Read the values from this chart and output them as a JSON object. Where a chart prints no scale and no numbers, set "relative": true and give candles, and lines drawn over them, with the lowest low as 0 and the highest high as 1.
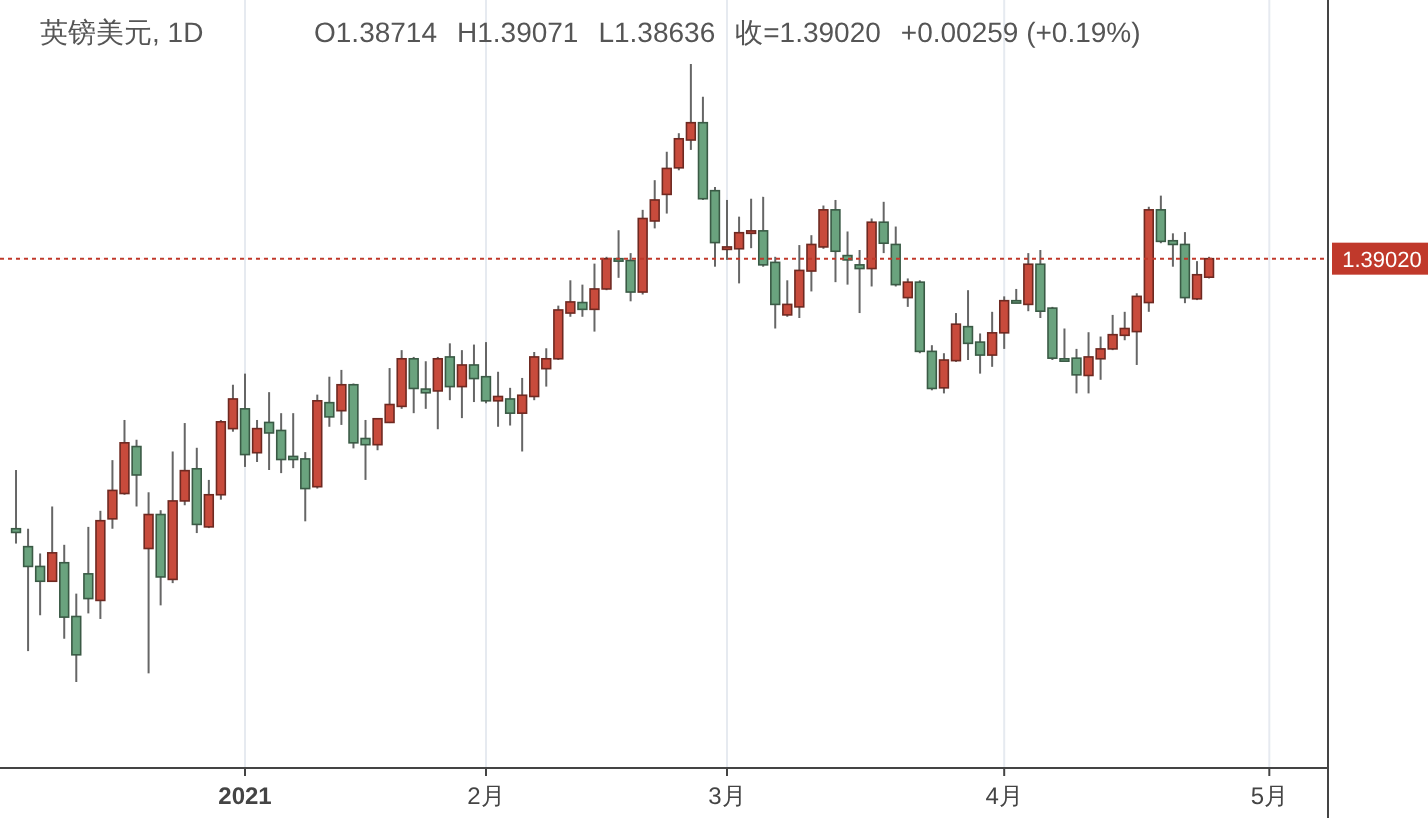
{
  "chart_data": {
    "type": "candlestick",
    "title": "英镑美元, 1D",
    "annotations": [
      "O1.38714",
      "H1.39071",
      "L1.38636",
      "收=1.39020",
      "+0.00259 (+0.19%)",
      "1.39020"
    ],
    "relative": true,
    "categories": [
      null,
      null,
      null,
      null,
      null,
      null,
      null,
      null,
      null,
      null,
      null,
      null,
      null,
      null,
      null,
      null,
      null,
      null,
      null,
      "2021",
      null,
      null,
      null,
      null,
      null,
      null,
      null,
      null,
      null,
      null,
      null,
      null,
      null,
      null,
      null,
      null,
      null,
      null,
      null,
      "2月",
      null,
      null,
      null,
      null,
      null,
      null,
      null,
      null,
      null,
      null,
      null,
      null,
      null,
      null,
      null,
      null,
      null,
      null,
      null,
      "3月",
      null,
      null,
      null,
      null,
      null,
      null,
      null,
      null,
      null,
      null,
      null,
      null,
      null,
      null,
      null,
      null,
      null,
      null,
      null,
      null,
      null,
      null,
      "4月",
      null,
      null,
      null,
      null,
      null,
      null,
      null,
      null,
      null,
      null,
      null,
      null,
      null,
      null,
      null,
      null,
      null,
      null,
      null,
      null,
      null,
      "5月"
    ],
    "ohlc": [
      [
        0.248,
        0.343,
        0.224,
        0.242
      ],
      [
        0.219,
        0.248,
        0.05,
        0.187
      ],
      [
        0.187,
        0.208,
        0.108,
        0.163
      ],
      [
        0.163,
        0.284,
        0.162,
        0.209
      ],
      [
        0.193,
        0.222,
        0.07,
        0.105
      ],
      [
        0.106,
        0.143,
        0.0,
        0.044
      ],
      [
        0.175,
        0.251,
        0.111,
        0.135
      ],
      [
        0.132,
        0.277,
        0.102,
        0.261
      ],
      [
        0.264,
        0.359,
        0.248,
        0.31
      ],
      [
        0.305,
        0.424,
        0.303,
        0.387
      ],
      [
        0.381,
        0.392,
        0.284,
        0.335
      ],
      [
        0.216,
        0.307,
        0.014,
        0.271
      ],
      [
        0.271,
        0.278,
        0.124,
        0.17
      ],
      [
        0.166,
        0.373,
        0.16,
        0.293
      ],
      [
        0.293,
        0.419,
        0.286,
        0.342
      ],
      [
        0.345,
        0.379,
        0.241,
        0.255
      ],
      [
        0.251,
        0.327,
        0.249,
        0.303
      ],
      [
        0.303,
        0.424,
        0.295,
        0.421
      ],
      [
        0.41,
        0.481,
        0.405,
        0.458
      ],
      [
        0.442,
        0.499,
        0.348,
        0.368
      ],
      [
        0.371,
        0.424,
        0.356,
        0.41
      ],
      [
        0.42,
        0.469,
        0.343,
        0.403
      ],
      [
        0.407,
        0.435,
        0.338,
        0.36
      ],
      [
        0.365,
        0.435,
        0.346,
        0.36
      ],
      [
        0.361,
        0.372,
        0.26,
        0.313
      ],
      [
        0.316,
        0.465,
        0.313,
        0.455
      ],
      [
        0.452,
        0.494,
        0.413,
        0.429
      ],
      [
        0.439,
        0.505,
        0.416,
        0.481
      ],
      [
        0.481,
        0.483,
        0.378,
        0.387
      ],
      [
        0.394,
        0.424,
        0.327,
        0.384
      ],
      [
        0.384,
        0.426,
        0.375,
        0.426
      ],
      [
        0.42,
        0.508,
        0.419,
        0.449
      ],
      [
        0.446,
        0.537,
        0.442,
        0.523
      ],
      [
        0.523,
        0.526,
        0.435,
        0.475
      ],
      [
        0.474,
        0.519,
        0.442,
        0.468
      ],
      [
        0.471,
        0.526,
        0.409,
        0.523
      ],
      [
        0.526,
        0.548,
        0.456,
        0.478
      ],
      [
        0.478,
        0.537,
        0.427,
        0.513
      ],
      [
        0.513,
        0.546,
        0.453,
        0.491
      ],
      [
        0.494,
        0.55,
        0.451,
        0.455
      ],
      [
        0.455,
        0.502,
        0.413,
        0.462
      ],
      [
        0.458,
        0.476,
        0.415,
        0.435
      ],
      [
        0.435,
        0.492,
        0.373,
        0.464
      ],
      [
        0.462,
        0.534,
        0.456,
        0.526
      ],
      [
        0.507,
        0.54,
        0.478,
        0.523
      ],
      [
        0.523,
        0.609,
        0.521,
        0.602
      ],
      [
        0.597,
        0.65,
        0.591,
        0.615
      ],
      [
        0.614,
        0.643,
        0.591,
        0.603
      ],
      [
        0.603,
        0.677,
        0.567,
        0.636
      ],
      [
        0.636,
        0.688,
        0.634,
        0.685
      ],
      [
        0.685,
        0.731,
        0.654,
        0.681
      ],
      [
        0.682,
        0.694,
        0.616,
        0.631
      ],
      [
        0.631,
        0.764,
        0.627,
        0.75
      ],
      [
        0.746,
        0.812,
        0.734,
        0.78
      ],
      [
        0.789,
        0.858,
        0.758,
        0.831
      ],
      [
        0.832,
        0.888,
        0.828,
        0.879
      ],
      [
        0.877,
        1.0,
        0.861,
        0.905
      ],
      [
        0.905,
        0.947,
        0.78,
        0.782
      ],
      [
        0.795,
        0.801,
        0.672,
        0.711
      ],
      [
        0.7,
        0.78,
        0.683,
        0.704
      ],
      [
        0.701,
        0.753,
        0.645,
        0.727
      ],
      [
        0.726,
        0.782,
        0.702,
        0.73
      ],
      [
        0.73,
        0.785,
        0.672,
        0.675
      ],
      [
        0.679,
        0.688,
        0.572,
        0.611
      ],
      [
        0.594,
        0.65,
        0.591,
        0.611
      ],
      [
        0.607,
        0.707,
        0.589,
        0.666
      ],
      [
        0.665,
        0.723,
        0.632,
        0.708
      ],
      [
        0.704,
        0.771,
        0.701,
        0.764
      ],
      [
        0.764,
        0.78,
        0.647,
        0.697
      ],
      [
        0.69,
        0.729,
        0.643,
        0.683
      ],
      [
        0.675,
        0.699,
        0.597,
        0.669
      ],
      [
        0.669,
        0.75,
        0.64,
        0.744
      ],
      [
        0.744,
        0.777,
        0.694,
        0.71
      ],
      [
        0.708,
        0.737,
        0.64,
        0.643
      ],
      [
        0.622,
        0.653,
        0.607,
        0.647
      ],
      [
        0.647,
        0.65,
        0.532,
        0.535
      ],
      [
        0.535,
        0.545,
        0.472,
        0.475
      ],
      [
        0.476,
        0.532,
        0.467,
        0.521
      ],
      [
        0.52,
        0.597,
        0.518,
        0.579
      ],
      [
        0.575,
        0.634,
        0.521,
        0.548
      ],
      [
        0.55,
        0.564,
        0.499,
        0.529
      ],
      [
        0.529,
        0.599,
        0.51,
        0.565
      ],
      [
        0.565,
        0.624,
        0.539,
        0.617
      ],
      [
        0.617,
        0.636,
        0.613,
        0.614
      ],
      [
        0.611,
        0.694,
        0.6,
        0.676
      ],
      [
        0.676,
        0.699,
        0.589,
        0.6
      ],
      [
        0.605,
        0.607,
        0.521,
        0.524
      ],
      [
        0.523,
        0.572,
        0.519,
        0.52
      ],
      [
        0.524,
        0.539,
        0.467,
        0.497
      ],
      [
        0.496,
        0.566,
        0.467,
        0.526
      ],
      [
        0.523,
        0.559,
        0.489,
        0.539
      ],
      [
        0.539,
        0.594,
        0.537,
        0.562
      ],
      [
        0.561,
        0.599,
        0.553,
        0.572
      ],
      [
        0.567,
        0.629,
        0.513,
        0.624
      ],
      [
        0.614,
        0.769,
        0.599,
        0.764
      ],
      [
        0.764,
        0.787,
        0.71,
        0.713
      ],
      [
        0.714,
        0.726,
        0.672,
        0.708
      ],
      [
        0.708,
        0.728,
        0.613,
        0.622
      ],
      [
        0.62,
        0.681,
        0.618,
        0.659
      ],
      [
        0.655,
        0.688,
        0.653,
        0.685
      ],
      null,
      null,
      null,
      null,
      null
    ],
    "colors": [
      "#6aa37e",
      "#6aa37e",
      "#6aa37e",
      "#c84b3c",
      "#6aa37e",
      "#6aa37e",
      "#6aa37e",
      "#c84b3c",
      "#c84b3c",
      "#c84b3c",
      "#6aa37e",
      "#c84b3c",
      "#6aa37e",
      "#c84b3c",
      "#c84b3c",
      "#6aa37e",
      "#c84b3c",
      "#c84b3c",
      "#c84b3c",
      "#6aa37e",
      "#c84b3c",
      "#6aa37e",
      "#6aa37e",
      "#6aa37e",
      "#6aa37e",
      "#c84b3c",
      "#6aa37e",
      "#c84b3c",
      "#6aa37e",
      "#6aa37e",
      "#c84b3c",
      "#c84b3c",
      "#c84b3c",
      "#6aa37e",
      "#6aa37e",
      "#c84b3c",
      "#6aa37e",
      "#c84b3c",
      "#6aa37e",
      "#6aa37e",
      "#c84b3c",
      "#6aa37e",
      "#c84b3c",
      "#c84b3c",
      "#c84b3c",
      "#c84b3c",
      "#c84b3c",
      "#6aa37e",
      "#c84b3c",
      "#c84b3c",
      "#6aa37e",
      "#6aa37e",
      "#c84b3c",
      "#c84b3c",
      "#c84b3c",
      "#c84b3c",
      "#c84b3c",
      "#6aa37e",
      "#6aa37e",
      "#c84b3c",
      "#c84b3c",
      "#c84b3c",
      "#6aa37e",
      "#6aa37e",
      "#c84b3c",
      "#c84b3c",
      "#c84b3c",
      "#c84b3c",
      "#6aa37e",
      "#6aa37e",
      "#6aa37e",
      "#c84b3c",
      "#6aa37e",
      "#6aa37e",
      "#c84b3c",
      "#6aa37e",
      "#6aa37e",
      "#c84b3c",
      "#c84b3c",
      "#6aa37e",
      "#6aa37e",
      "#c84b3c",
      "#c84b3c",
      "#6aa37e",
      "#c84b3c",
      "#6aa37e",
      "#6aa37e",
      "#6aa37e",
      "#6aa37e",
      "#c84b3c",
      "#c84b3c",
      "#c84b3c",
      "#c84b3c",
      "#c84b3c",
      "#c84b3c",
      "#6aa37e",
      "#6aa37e",
      "#6aa37e",
      "#c84b3c",
      "#c84b3c",
      null,
      null,
      null,
      null,
      null
    ],
    "grid": "x",
    "ref_lines": [
      {
        "axis": "y",
        "value": 0.685,
        "color": "#c0392b",
        "line_style": "dotted"
      }
    ]
  }
}
